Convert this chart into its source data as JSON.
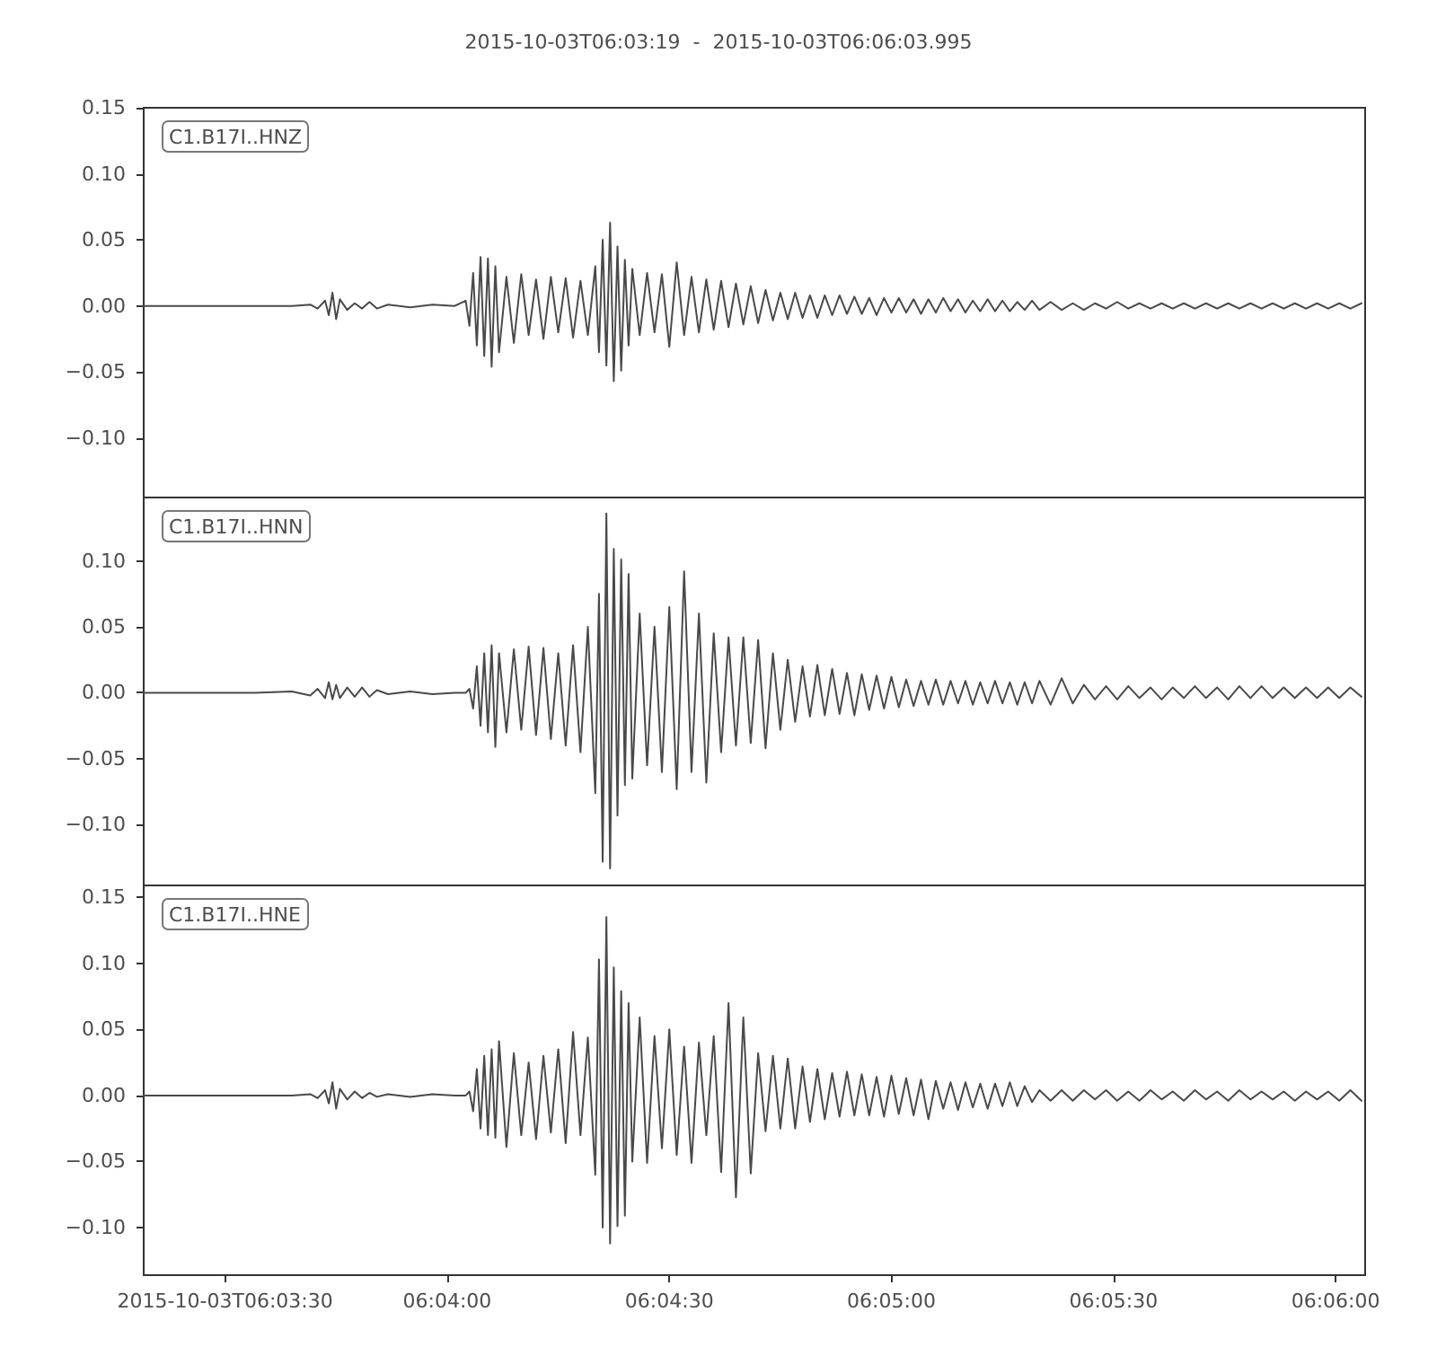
{
  "chart_data": [
    {
      "type": "line",
      "title": "2015-10-03T06:03:19  -  2015-10-03T06:06:03.995",
      "annotations": [
        "C1.B17I..HNZ"
      ],
      "x": [
        "2015-10-03T06:03:19",
        "2015-10-03T06:03:24",
        "2015-10-03T06:03:29",
        "2015-10-03T06:03:34",
        "2015-10-03T06:03:39",
        "2015-10-03T06:03:41.5",
        "2015-10-03T06:03:42.5",
        "2015-10-03T06:03:43.5",
        "2015-10-03T06:03:44",
        "2015-10-03T06:03:44.5",
        "2015-10-03T06:03:45",
        "2015-10-03T06:03:45.5",
        "2015-10-03T06:03:46.5",
        "2015-10-03T06:03:47.5",
        "2015-10-03T06:03:48.5",
        "2015-10-03T06:03:49.5",
        "2015-10-03T06:03:50.5",
        "2015-10-03T06:03:52",
        "2015-10-03T06:03:55",
        "2015-10-03T06:03:58",
        "2015-10-03T06:04:01",
        "2015-10-03T06:04:02.5",
        "2015-10-03T06:04:03",
        "2015-10-03T06:04:03.5",
        "2015-10-03T06:04:04",
        "2015-10-03T06:04:04.5",
        "2015-10-03T06:04:05",
        "2015-10-03T06:04:05.5",
        "2015-10-03T06:04:06",
        "2015-10-03T06:04:06.5",
        "2015-10-03T06:04:07",
        "2015-10-03T06:04:08",
        "2015-10-03T06:04:09",
        "2015-10-03T06:04:10",
        "2015-10-03T06:04:11",
        "2015-10-03T06:04:12",
        "2015-10-03T06:04:13",
        "2015-10-03T06:04:14",
        "2015-10-03T06:04:15",
        "2015-10-03T06:04:16",
        "2015-10-03T06:04:17",
        "2015-10-03T06:04:18",
        "2015-10-03T06:04:19",
        "2015-10-03T06:04:20",
        "2015-10-03T06:04:20.5",
        "2015-10-03T06:04:21",
        "2015-10-03T06:04:21.5",
        "2015-10-03T06:04:22",
        "2015-10-03T06:04:22.5",
        "2015-10-03T06:04:23",
        "2015-10-03T06:04:23.5",
        "2015-10-03T06:04:24",
        "2015-10-03T06:04:24.5",
        "2015-10-03T06:04:25",
        "2015-10-03T06:04:26",
        "2015-10-03T06:04:27",
        "2015-10-03T06:04:28",
        "2015-10-03T06:04:29",
        "2015-10-03T06:04:30",
        "2015-10-03T06:04:31",
        "2015-10-03T06:04:32",
        "2015-10-03T06:04:33",
        "2015-10-03T06:04:34",
        "2015-10-03T06:04:35",
        "2015-10-03T06:04:36",
        "2015-10-03T06:04:37",
        "2015-10-03T06:04:38",
        "2015-10-03T06:04:39",
        "2015-10-03T06:04:40",
        "2015-10-03T06:04:41",
        "2015-10-03T06:04:42",
        "2015-10-03T06:04:43",
        "2015-10-03T06:04:44",
        "2015-10-03T06:04:45",
        "2015-10-03T06:04:46",
        "2015-10-03T06:04:47",
        "2015-10-03T06:04:48",
        "2015-10-03T06:04:49",
        "2015-10-03T06:04:50",
        "2015-10-03T06:04:51",
        "2015-10-03T06:04:52",
        "2015-10-03T06:04:53",
        "2015-10-03T06:04:54",
        "2015-10-03T06:04:55",
        "2015-10-03T06:04:56",
        "2015-10-03T06:04:57",
        "2015-10-03T06:04:58",
        "2015-10-03T06:04:59",
        "2015-10-03T06:05:00",
        "2015-10-03T06:05:01",
        "2015-10-03T06:05:02",
        "2015-10-03T06:05:03",
        "2015-10-03T06:05:04",
        "2015-10-03T06:05:05",
        "2015-10-03T06:05:06",
        "2015-10-03T06:05:07",
        "2015-10-03T06:05:08",
        "2015-10-03T06:05:09",
        "2015-10-03T06:05:10",
        "2015-10-03T06:05:11",
        "2015-10-03T06:05:12",
        "2015-10-03T06:05:13",
        "2015-10-03T06:05:14",
        "2015-10-03T06:05:15",
        "2015-10-03T06:05:16",
        "2015-10-03T06:05:17",
        "2015-10-03T06:05:18",
        "2015-10-03T06:05:19",
        "2015-10-03T06:05:20",
        "2015-10-03T06:05:21.5",
        "2015-10-03T06:05:23",
        "2015-10-03T06:05:24.5",
        "2015-10-03T06:05:26",
        "2015-10-03T06:05:27.5",
        "2015-10-03T06:05:29",
        "2015-10-03T06:05:30.5",
        "2015-10-03T06:05:32",
        "2015-10-03T06:05:33.5",
        "2015-10-03T06:05:35",
        "2015-10-03T06:05:36.5",
        "2015-10-03T06:05:38",
        "2015-10-03T06:05:39.5",
        "2015-10-03T06:05:41",
        "2015-10-03T06:05:42.5",
        "2015-10-03T06:05:44",
        "2015-10-03T06:05:45.5",
        "2015-10-03T06:05:47",
        "2015-10-03T06:05:48.5",
        "2015-10-03T06:05:50",
        "2015-10-03T06:05:51.5",
        "2015-10-03T06:05:53",
        "2015-10-03T06:05:54.5",
        "2015-10-03T06:05:56",
        "2015-10-03T06:05:57.5",
        "2015-10-03T06:05:59",
        "2015-10-03T06:06:00.5",
        "2015-10-03T06:06:02",
        "2015-10-03T06:06:03.5"
      ],
      "series": [
        {
          "color": "#4a4a4a",
          "values": [
            0,
            0,
            0,
            0,
            0,
            0.001,
            -0.002,
            0.004,
            -0.007,
            0.01,
            -0.01,
            0.005,
            -0.003,
            0.002,
            -0.002,
            0.003,
            -0.002,
            0.001,
            -0.001,
            0.001,
            0,
            0.004,
            -0.015,
            0.025,
            -0.03,
            0.037,
            -0.038,
            0.036,
            -0.046,
            0.03,
            -0.035,
            0.022,
            -0.028,
            0.024,
            -0.022,
            0.02,
            -0.025,
            0.022,
            -0.02,
            0.021,
            -0.024,
            0.019,
            -0.022,
            0.03,
            -0.035,
            0.05,
            -0.045,
            0.063,
            -0.057,
            0.045,
            -0.049,
            0.035,
            -0.03,
            0.028,
            -0.022,
            0.025,
            -0.02,
            0.024,
            -0.031,
            0.033,
            -0.022,
            0.022,
            -0.02,
            0.02,
            -0.018,
            0.019,
            -0.016,
            0.017,
            -0.014,
            0.015,
            -0.013,
            0.012,
            -0.011,
            0.01,
            -0.01,
            0.01,
            -0.009,
            0.008,
            -0.009,
            0.008,
            -0.007,
            0.008,
            -0.006,
            0.007,
            -0.006,
            0.006,
            -0.007,
            0.006,
            -0.005,
            0.006,
            -0.005,
            0.005,
            -0.006,
            0.005,
            -0.005,
            0.006,
            -0.004,
            0.005,
            -0.005,
            0.004,
            -0.004,
            0.005,
            -0.004,
            0.004,
            -0.004,
            0.003,
            -0.003,
            0.004,
            -0.003,
            0.003,
            -0.003,
            0.002,
            -0.003,
            0.002,
            -0.002,
            0.003,
            -0.002,
            0.002,
            -0.002,
            0.002,
            -0.002,
            0.002,
            -0.002,
            0.002,
            -0.002,
            0.002,
            -0.002,
            0.002,
            -0.002,
            0.002,
            -0.002,
            0.002,
            -0.002,
            0.002,
            -0.002,
            0.002,
            -0.002,
            0.002
          ]
        }
      ],
      "xlim": [
        "2015-10-03T06:03:19",
        "2015-10-03T06:06:03.995"
      ],
      "ylim": [
        -0.145,
        0.15
      ],
      "yticks": [
        {
          "value": 0.15,
          "label": "0.15"
        },
        {
          "value": 0.1,
          "label": "0.10"
        },
        {
          "value": 0.05,
          "label": "0.05"
        },
        {
          "value": 0,
          "label": "0.00"
        },
        {
          "value": -0.05,
          "label": "−0.05"
        },
        {
          "value": -0.1,
          "label": "−0.10"
        }
      ],
      "tick_labels": "y"
    },
    {
      "type": "line",
      "annotations": [
        "C1.B17I..HNN"
      ],
      "x": [
        "2015-10-03T06:03:19",
        "2015-10-03T06:03:24",
        "2015-10-03T06:03:29",
        "2015-10-03T06:03:34",
        "2015-10-03T06:03:39",
        "2015-10-03T06:03:41.5",
        "2015-10-03T06:03:42.5",
        "2015-10-03T06:03:43.5",
        "2015-10-03T06:03:44",
        "2015-10-03T06:03:44.5",
        "2015-10-03T06:03:45",
        "2015-10-03T06:03:45.5",
        "2015-10-03T06:03:46.5",
        "2015-10-03T06:03:47.5",
        "2015-10-03T06:03:48.5",
        "2015-10-03T06:03:49.5",
        "2015-10-03T06:03:50.5",
        "2015-10-03T06:03:52",
        "2015-10-03T06:03:55",
        "2015-10-03T06:03:58",
        "2015-10-03T06:04:01",
        "2015-10-03T06:04:02.5",
        "2015-10-03T06:04:03",
        "2015-10-03T06:04:03.5",
        "2015-10-03T06:04:04",
        "2015-10-03T06:04:04.5",
        "2015-10-03T06:04:05",
        "2015-10-03T06:04:05.5",
        "2015-10-03T06:04:06",
        "2015-10-03T06:04:06.5",
        "2015-10-03T06:04:07",
        "2015-10-03T06:04:08",
        "2015-10-03T06:04:09",
        "2015-10-03T06:04:10",
        "2015-10-03T06:04:11",
        "2015-10-03T06:04:12",
        "2015-10-03T06:04:13",
        "2015-10-03T06:04:14",
        "2015-10-03T06:04:15",
        "2015-10-03T06:04:16",
        "2015-10-03T06:04:17",
        "2015-10-03T06:04:18",
        "2015-10-03T06:04:19",
        "2015-10-03T06:04:20",
        "2015-10-03T06:04:20.5",
        "2015-10-03T06:04:21",
        "2015-10-03T06:04:21.5",
        "2015-10-03T06:04:22",
        "2015-10-03T06:04:22.5",
        "2015-10-03T06:04:23",
        "2015-10-03T06:04:23.5",
        "2015-10-03T06:04:24",
        "2015-10-03T06:04:24.5",
        "2015-10-03T06:04:25",
        "2015-10-03T06:04:26",
        "2015-10-03T06:04:27",
        "2015-10-03T06:04:28",
        "2015-10-03T06:04:29",
        "2015-10-03T06:04:30",
        "2015-10-03T06:04:31",
        "2015-10-03T06:04:32",
        "2015-10-03T06:04:33",
        "2015-10-03T06:04:34",
        "2015-10-03T06:04:35",
        "2015-10-03T06:04:36",
        "2015-10-03T06:04:37",
        "2015-10-03T06:04:38",
        "2015-10-03T06:04:39",
        "2015-10-03T06:04:40",
        "2015-10-03T06:04:41",
        "2015-10-03T06:04:42",
        "2015-10-03T06:04:43",
        "2015-10-03T06:04:44",
        "2015-10-03T06:04:45",
        "2015-10-03T06:04:46",
        "2015-10-03T06:04:47",
        "2015-10-03T06:04:48",
        "2015-10-03T06:04:49",
        "2015-10-03T06:04:50",
        "2015-10-03T06:04:51",
        "2015-10-03T06:04:52",
        "2015-10-03T06:04:53",
        "2015-10-03T06:04:54",
        "2015-10-03T06:04:55",
        "2015-10-03T06:04:56",
        "2015-10-03T06:04:57",
        "2015-10-03T06:04:58",
        "2015-10-03T06:04:59",
        "2015-10-03T06:05:00",
        "2015-10-03T06:05:01",
        "2015-10-03T06:05:02",
        "2015-10-03T06:05:03",
        "2015-10-03T06:05:04",
        "2015-10-03T06:05:05",
        "2015-10-03T06:05:06",
        "2015-10-03T06:05:07",
        "2015-10-03T06:05:08",
        "2015-10-03T06:05:09",
        "2015-10-03T06:05:10",
        "2015-10-03T06:05:11",
        "2015-10-03T06:05:12",
        "2015-10-03T06:05:13",
        "2015-10-03T06:05:14",
        "2015-10-03T06:05:15",
        "2015-10-03T06:05:16",
        "2015-10-03T06:05:17",
        "2015-10-03T06:05:18",
        "2015-10-03T06:05:19",
        "2015-10-03T06:05:20",
        "2015-10-03T06:05:21.5",
        "2015-10-03T06:05:23",
        "2015-10-03T06:05:24.5",
        "2015-10-03T06:05:26",
        "2015-10-03T06:05:27.5",
        "2015-10-03T06:05:29",
        "2015-10-03T06:05:30.5",
        "2015-10-03T06:05:32",
        "2015-10-03T06:05:33.5",
        "2015-10-03T06:05:35",
        "2015-10-03T06:05:36.5",
        "2015-10-03T06:05:38",
        "2015-10-03T06:05:39.5",
        "2015-10-03T06:05:41",
        "2015-10-03T06:05:42.5",
        "2015-10-03T06:05:44",
        "2015-10-03T06:05:45.5",
        "2015-10-03T06:05:47",
        "2015-10-03T06:05:48.5",
        "2015-10-03T06:05:50",
        "2015-10-03T06:05:51.5",
        "2015-10-03T06:05:53",
        "2015-10-03T06:05:54.5",
        "2015-10-03T06:05:56",
        "2015-10-03T06:05:57.5",
        "2015-10-03T06:05:59",
        "2015-10-03T06:06:00.5",
        "2015-10-03T06:06:02",
        "2015-10-03T06:06:03.5"
      ],
      "series": [
        {
          "color": "#4a4a4a",
          "values": [
            0,
            0,
            0,
            0,
            0.001,
            -0.002,
            0.003,
            -0.004,
            0.008,
            -0.005,
            0.006,
            -0.004,
            0.004,
            -0.003,
            0.004,
            -0.003,
            0.002,
            -0.001,
            0.001,
            -0.001,
            0,
            0,
            0.003,
            -0.012,
            0.02,
            -0.025,
            0.03,
            -0.03,
            0.036,
            -0.041,
            0.03,
            -0.03,
            0.033,
            -0.028,
            0.035,
            -0.032,
            0.034,
            -0.035,
            0.03,
            -0.04,
            0.036,
            -0.045,
            0.05,
            -0.076,
            0.075,
            -0.128,
            0.136,
            -0.133,
            0.109,
            -0.093,
            0.101,
            -0.07,
            0.09,
            -0.065,
            0.06,
            -0.055,
            0.05,
            -0.06,
            0.065,
            -0.073,
            0.092,
            -0.06,
            0.06,
            -0.068,
            0.045,
            -0.045,
            0.042,
            -0.04,
            0.042,
            -0.038,
            0.04,
            -0.042,
            0.03,
            -0.028,
            0.025,
            -0.022,
            0.02,
            -0.018,
            0.021,
            -0.017,
            0.018,
            -0.016,
            0.015,
            -0.017,
            0.014,
            -0.013,
            0.013,
            -0.012,
            0.012,
            -0.011,
            0.01,
            -0.01,
            0.009,
            -0.009,
            0.01,
            -0.009,
            0.009,
            -0.008,
            0.009,
            -0.009,
            0.008,
            -0.008,
            0.009,
            -0.008,
            0.008,
            -0.009,
            0.008,
            -0.008,
            0.009,
            -0.009,
            0.011,
            -0.008,
            0.006,
            -0.005,
            0.005,
            -0.005,
            0.005,
            -0.004,
            0.004,
            -0.005,
            0.004,
            -0.004,
            0.005,
            -0.004,
            0.004,
            -0.005,
            0.005,
            -0.004,
            0.005,
            -0.004,
            0.004,
            -0.004,
            0.004,
            -0.004,
            0.004,
            -0.004,
            0.004,
            -0.003
          ]
        }
      ],
      "xlim": [
        "2015-10-03T06:03:19",
        "2015-10-03T06:06:03.995"
      ],
      "ylim": [
        -0.146,
        0.148
      ],
      "yticks": [
        {
          "value": 0.1,
          "label": "0.10"
        },
        {
          "value": 0.05,
          "label": "0.05"
        },
        {
          "value": 0,
          "label": "0.00"
        },
        {
          "value": -0.05,
          "label": "−0.05"
        },
        {
          "value": -0.1,
          "label": "−0.10"
        }
      ],
      "tick_labels": "y"
    },
    {
      "type": "line",
      "annotations": [
        "C1.B17I..HNE"
      ],
      "x": [
        "2015-10-03T06:03:19",
        "2015-10-03T06:03:24",
        "2015-10-03T06:03:29",
        "2015-10-03T06:03:34",
        "2015-10-03T06:03:39",
        "2015-10-03T06:03:41.5",
        "2015-10-03T06:03:42.5",
        "2015-10-03T06:03:43.5",
        "2015-10-03T06:03:44",
        "2015-10-03T06:03:44.5",
        "2015-10-03T06:03:45",
        "2015-10-03T06:03:45.5",
        "2015-10-03T06:03:46.5",
        "2015-10-03T06:03:47.5",
        "2015-10-03T06:03:48.5",
        "2015-10-03T06:03:49.5",
        "2015-10-03T06:03:50.5",
        "2015-10-03T06:03:52",
        "2015-10-03T06:03:55",
        "2015-10-03T06:03:58",
        "2015-10-03T06:04:01",
        "2015-10-03T06:04:02.5",
        "2015-10-03T06:04:03",
        "2015-10-03T06:04:03.5",
        "2015-10-03T06:04:04",
        "2015-10-03T06:04:04.5",
        "2015-10-03T06:04:05",
        "2015-10-03T06:04:05.5",
        "2015-10-03T06:04:06",
        "2015-10-03T06:04:06.5",
        "2015-10-03T06:04:07",
        "2015-10-03T06:04:08",
        "2015-10-03T06:04:09",
        "2015-10-03T06:04:10",
        "2015-10-03T06:04:11",
        "2015-10-03T06:04:12",
        "2015-10-03T06:04:13",
        "2015-10-03T06:04:14",
        "2015-10-03T06:04:15",
        "2015-10-03T06:04:16",
        "2015-10-03T06:04:17",
        "2015-10-03T06:04:18",
        "2015-10-03T06:04:19",
        "2015-10-03T06:04:20",
        "2015-10-03T06:04:20.5",
        "2015-10-03T06:04:21",
        "2015-10-03T06:04:21.5",
        "2015-10-03T06:04:22",
        "2015-10-03T06:04:22.5",
        "2015-10-03T06:04:23",
        "2015-10-03T06:04:23.5",
        "2015-10-03T06:04:24",
        "2015-10-03T06:04:24.5",
        "2015-10-03T06:04:25",
        "2015-10-03T06:04:26",
        "2015-10-03T06:04:27",
        "2015-10-03T06:04:28",
        "2015-10-03T06:04:29",
        "2015-10-03T06:04:30",
        "2015-10-03T06:04:31",
        "2015-10-03T06:04:32",
        "2015-10-03T06:04:33",
        "2015-10-03T06:04:34",
        "2015-10-03T06:04:35",
        "2015-10-03T06:04:36",
        "2015-10-03T06:04:37",
        "2015-10-03T06:04:38",
        "2015-10-03T06:04:39",
        "2015-10-03T06:04:40",
        "2015-10-03T06:04:41",
        "2015-10-03T06:04:42",
        "2015-10-03T06:04:43",
        "2015-10-03T06:04:44",
        "2015-10-03T06:04:45",
        "2015-10-03T06:04:46",
        "2015-10-03T06:04:47",
        "2015-10-03T06:04:48",
        "2015-10-03T06:04:49",
        "2015-10-03T06:04:50",
        "2015-10-03T06:04:51",
        "2015-10-03T06:04:52",
        "2015-10-03T06:04:53",
        "2015-10-03T06:04:54",
        "2015-10-03T06:04:55",
        "2015-10-03T06:04:56",
        "2015-10-03T06:04:57",
        "2015-10-03T06:04:58",
        "2015-10-03T06:04:59",
        "2015-10-03T06:05:00",
        "2015-10-03T06:05:01",
        "2015-10-03T06:05:02",
        "2015-10-03T06:05:03",
        "2015-10-03T06:05:04",
        "2015-10-03T06:05:05",
        "2015-10-03T06:05:06",
        "2015-10-03T06:05:07",
        "2015-10-03T06:05:08",
        "2015-10-03T06:05:09",
        "2015-10-03T06:05:10",
        "2015-10-03T06:05:11",
        "2015-10-03T06:05:12",
        "2015-10-03T06:05:13",
        "2015-10-03T06:05:14",
        "2015-10-03T06:05:15",
        "2015-10-03T06:05:16",
        "2015-10-03T06:05:17",
        "2015-10-03T06:05:18",
        "2015-10-03T06:05:19",
        "2015-10-03T06:05:20",
        "2015-10-03T06:05:21.5",
        "2015-10-03T06:05:23",
        "2015-10-03T06:05:24.5",
        "2015-10-03T06:05:26",
        "2015-10-03T06:05:27.5",
        "2015-10-03T06:05:29",
        "2015-10-03T06:05:30.5",
        "2015-10-03T06:05:32",
        "2015-10-03T06:05:33.5",
        "2015-10-03T06:05:35",
        "2015-10-03T06:05:36.5",
        "2015-10-03T06:05:38",
        "2015-10-03T06:05:39.5",
        "2015-10-03T06:05:41",
        "2015-10-03T06:05:42.5",
        "2015-10-03T06:05:44",
        "2015-10-03T06:05:45.5",
        "2015-10-03T06:05:47",
        "2015-10-03T06:05:48.5",
        "2015-10-03T06:05:50",
        "2015-10-03T06:05:51.5",
        "2015-10-03T06:05:53",
        "2015-10-03T06:05:54.5",
        "2015-10-03T06:05:56",
        "2015-10-03T06:05:57.5",
        "2015-10-03T06:05:59",
        "2015-10-03T06:06:00.5",
        "2015-10-03T06:06:02",
        "2015-10-03T06:06:03.5"
      ],
      "series": [
        {
          "color": "#4a4a4a",
          "values": [
            0,
            0,
            0,
            0,
            0,
            0.001,
            -0.002,
            0.004,
            -0.006,
            0.01,
            -0.01,
            0.005,
            -0.003,
            0.003,
            -0.002,
            0.002,
            -0.001,
            0.001,
            -0.001,
            0.001,
            0,
            0,
            0.003,
            -0.012,
            0.02,
            -0.025,
            0.03,
            -0.03,
            0.035,
            -0.032,
            0.041,
            -0.039,
            0.032,
            -0.03,
            0.025,
            -0.033,
            0.03,
            -0.028,
            0.035,
            -0.036,
            0.048,
            -0.03,
            0.044,
            -0.06,
            0.103,
            -0.1,
            0.135,
            -0.112,
            0.097,
            -0.099,
            0.079,
            -0.091,
            0.07,
            -0.05,
            0.059,
            -0.051,
            0.045,
            -0.04,
            0.05,
            -0.045,
            0.037,
            -0.051,
            0.04,
            -0.03,
            0.045,
            -0.058,
            0.07,
            -0.077,
            0.059,
            -0.059,
            0.032,
            -0.027,
            0.03,
            -0.025,
            0.028,
            -0.025,
            0.022,
            -0.02,
            0.02,
            -0.018,
            0.017,
            -0.016,
            0.018,
            -0.015,
            0.016,
            -0.015,
            0.014,
            -0.016,
            0.015,
            -0.014,
            0.013,
            -0.015,
            0.012,
            -0.018,
            0.011,
            -0.01,
            0.01,
            -0.011,
            0.01,
            -0.009,
            0.009,
            -0.01,
            0.009,
            -0.008,
            0.01,
            -0.008,
            0.007,
            -0.005,
            0.004,
            -0.004,
            0.004,
            -0.004,
            0.004,
            -0.003,
            0.004,
            -0.004,
            0.003,
            -0.004,
            0.004,
            -0.003,
            0.003,
            -0.004,
            0.004,
            -0.003,
            0.003,
            -0.004,
            0.004,
            -0.003,
            0.003,
            -0.003,
            0.003,
            -0.004,
            0.003,
            -0.003,
            0.003,
            -0.004,
            0.004,
            -0.004
          ]
        }
      ],
      "xlim": [
        "2015-10-03T06:03:19",
        "2015-10-03T06:06:03.995"
      ],
      "xticks": [
        {
          "value": "2015-10-03T06:03:30",
          "label": "2015-10-03T06:03:30"
        },
        {
          "value": "2015-10-03T06:04:00",
          "label": "06:04:00"
        },
        {
          "value": "2015-10-03T06:04:30",
          "label": "06:04:30"
        },
        {
          "value": "2015-10-03T06:05:00",
          "label": "06:05:00"
        },
        {
          "value": "2015-10-03T06:05:30",
          "label": "06:05:30"
        },
        {
          "value": "2015-10-03T06:06:00",
          "label": "06:06:00"
        }
      ],
      "ylim": [
        -0.136,
        0.159
      ],
      "yticks": [
        {
          "value": 0.15,
          "label": "0.15"
        },
        {
          "value": 0.1,
          "label": "0.10"
        },
        {
          "value": 0.05,
          "label": "0.05"
        },
        {
          "value": 0,
          "label": "0.00"
        },
        {
          "value": -0.05,
          "label": "−0.05"
        },
        {
          "value": -0.1,
          "label": "−0.10"
        }
      ]
    }
  ]
}
